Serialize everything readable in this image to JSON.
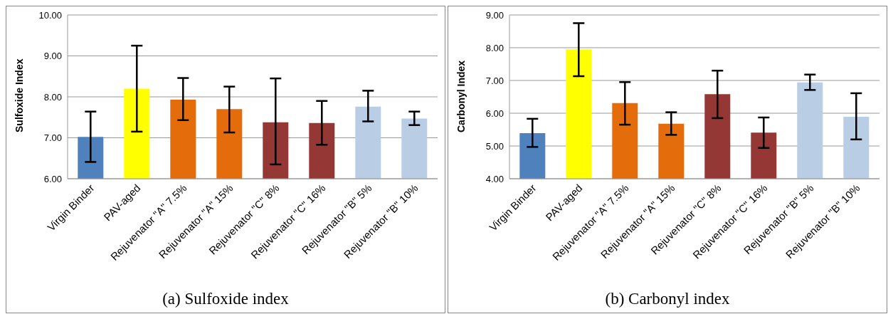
{
  "chart_data": [
    {
      "type": "bar",
      "ylabel": "Sulfoxide Index",
      "categories": [
        "Virgin Binder",
        "PAV-aged",
        "Rejuvenator \"A\" 7.5%",
        "Rejuvenator \"A\" 15%",
        "Rejuvenator \"C\" 8%",
        "Rejuvenator \"C\" 16%",
        "Rejuvenator \"B\" 5%",
        "Rejuvenator \"B\" 10%"
      ],
      "values": [
        7.02,
        8.2,
        7.93,
        7.7,
        7.38,
        7.36,
        7.76,
        7.47
      ],
      "colors": [
        "#4f81bd",
        "#ffff00",
        "#e46c0a",
        "#e46c0a",
        "#953735",
        "#953735",
        "#b9cde5",
        "#b9cde5"
      ],
      "errors": [
        [
          6.41,
          7.64
        ],
        [
          7.15,
          9.25
        ],
        [
          7.43,
          8.46
        ],
        [
          7.13,
          8.25
        ],
        [
          6.35,
          8.45
        ],
        [
          6.83,
          7.9
        ],
        [
          7.4,
          8.15
        ],
        [
          7.31,
          7.64
        ]
      ],
      "ylim": [
        6,
        10
      ],
      "yticks": [
        {
          "value": 6,
          "label": "6.00"
        },
        {
          "value": 7,
          "label": "7.00"
        },
        {
          "value": 8,
          "label": "8.00"
        },
        {
          "value": 9,
          "label": "9.00"
        },
        {
          "value": 10,
          "label": "10.00"
        }
      ],
      "grid": "y",
      "annotations": [
        "(a) Sulfoxide index"
      ]
    },
    {
      "type": "bar",
      "ylabel": "Carbonyl Index",
      "categories": [
        "Virgin Binder",
        "PAV-aged",
        "Rejuvenator \"A\" 7.5%",
        "Rejuvenator \"A\" 15%",
        "Rejuvenator \"C\" 8%",
        "Rejuvenator \"C\" 16%",
        "Rejuvenator \"B\" 5%",
        "Rejuvenator \"B\" 10%"
      ],
      "values": [
        5.39,
        7.95,
        6.31,
        5.68,
        6.58,
        5.41,
        6.94,
        5.89
      ],
      "colors": [
        "#4f81bd",
        "#ffff00",
        "#e46c0a",
        "#e46c0a",
        "#953735",
        "#953735",
        "#b9cde5",
        "#b9cde5"
      ],
      "errors": [
        [
          4.97,
          5.83
        ],
        [
          7.13,
          8.75
        ],
        [
          5.65,
          6.95
        ],
        [
          5.34,
          6.03
        ],
        [
          5.85,
          7.3
        ],
        [
          4.94,
          5.87
        ],
        [
          6.71,
          7.18
        ],
        [
          5.2,
          6.61
        ]
      ],
      "ylim": [
        4,
        9
      ],
      "yticks": [
        {
          "value": 4,
          "label": "4.00"
        },
        {
          "value": 5,
          "label": "5.00"
        },
        {
          "value": 6,
          "label": "6.00"
        },
        {
          "value": 7,
          "label": "7.00"
        },
        {
          "value": 8,
          "label": "8.00"
        },
        {
          "value": 9,
          "label": "9.00"
        }
      ],
      "grid": "y",
      "annotations": [
        "(b) Carbonyl index"
      ]
    }
  ]
}
